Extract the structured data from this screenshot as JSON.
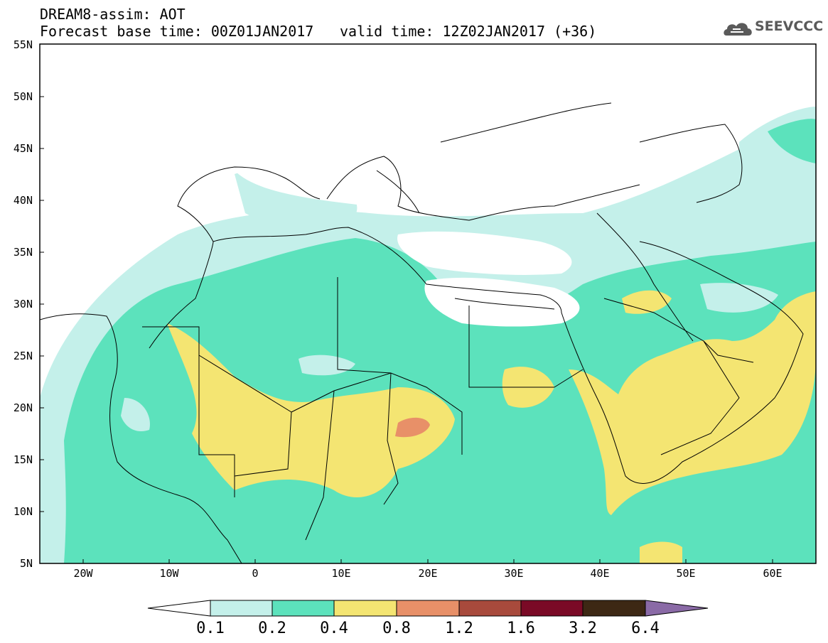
{
  "header": {
    "title": "DREAM8-assim: AOT",
    "base_time": "Forecast base time: 00Z01JAN2017",
    "valid_time": "valid time: 12Z02JAN2017 (+36)",
    "logo_text": "SEEVCCC"
  },
  "map": {
    "extent": {
      "lon": [
        -25,
        65
      ],
      "lat": [
        5,
        55
      ]
    },
    "lat_labels": [
      "55N",
      "50N",
      "45N",
      "40N",
      "35N",
      "30N",
      "25N",
      "20N",
      "15N",
      "10N",
      "5N"
    ],
    "lon_labels": [
      "20W",
      "10W",
      "0",
      "10E",
      "20E",
      "30E",
      "40E",
      "50E",
      "60E"
    ],
    "background_color": "#ffffff"
  },
  "colorbar": {
    "labels": [
      "0.1",
      "0.2",
      "0.4",
      "0.8",
      "1.2",
      "1.6",
      "3.2",
      "6.4"
    ],
    "colors": [
      "#ffffff",
      "#c4f0ea",
      "#5ce2bc",
      "#f4e572",
      "#e89068",
      "#a84a3c",
      "#7a0a26",
      "#3d2814",
      "#8a6aa6"
    ]
  },
  "chart_data": {
    "type": "heatmap",
    "title": "DREAM8-assim: AOT",
    "variable": "AOT",
    "contour_levels": [
      0.1,
      0.2,
      0.4,
      0.8,
      1.2,
      1.6,
      3.2,
      6.4
    ],
    "highest_value_region": {
      "range": [
        0.8,
        1.2
      ],
      "approx_location": "Chad (≈17N, 19E)"
    },
    "regions_0_4_to_0_8": [
      "Mali / Niger / Mauritania",
      "Red Sea / Sudan coast",
      "Arabian Peninsula",
      "Persian Gulf"
    ]
  }
}
